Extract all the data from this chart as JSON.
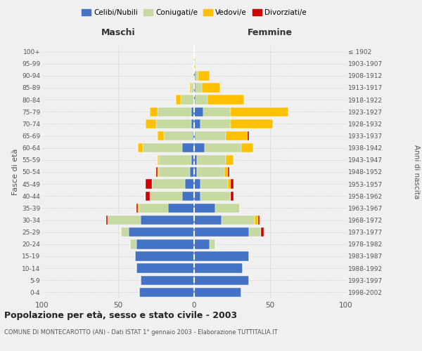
{
  "age_groups": [
    "0-4",
    "5-9",
    "10-14",
    "15-19",
    "20-24",
    "25-29",
    "30-34",
    "35-39",
    "40-44",
    "45-49",
    "50-54",
    "55-59",
    "60-64",
    "65-69",
    "70-74",
    "75-79",
    "80-84",
    "85-89",
    "90-94",
    "95-99",
    "100+"
  ],
  "birth_years": [
    "1998-2002",
    "1993-1997",
    "1988-1992",
    "1983-1987",
    "1978-1982",
    "1973-1977",
    "1968-1972",
    "1963-1967",
    "1958-1962",
    "1953-1957",
    "1948-1952",
    "1943-1947",
    "1938-1942",
    "1933-1937",
    "1928-1932",
    "1923-1927",
    "1918-1922",
    "1913-1917",
    "1908-1912",
    "1903-1907",
    "≤ 1902"
  ],
  "maschi": {
    "celibi": [
      36,
      35,
      38,
      39,
      38,
      43,
      35,
      17,
      8,
      6,
      3,
      2,
      8,
      1,
      2,
      2,
      0,
      0,
      0,
      0,
      0
    ],
    "coniugati": [
      0,
      0,
      0,
      0,
      4,
      5,
      22,
      19,
      21,
      22,
      20,
      21,
      26,
      19,
      23,
      22,
      9,
      2,
      1,
      0,
      0
    ],
    "vedovi": [
      0,
      0,
      0,
      0,
      0,
      0,
      0,
      1,
      0,
      0,
      1,
      1,
      3,
      4,
      7,
      5,
      3,
      1,
      0,
      0,
      0
    ],
    "divorziati": [
      0,
      0,
      0,
      0,
      0,
      0,
      1,
      1,
      3,
      4,
      1,
      0,
      0,
      0,
      0,
      0,
      0,
      0,
      0,
      0,
      0
    ]
  },
  "femmine": {
    "nubili": [
      31,
      36,
      32,
      36,
      10,
      36,
      18,
      14,
      4,
      4,
      2,
      2,
      7,
      1,
      4,
      6,
      1,
      1,
      1,
      0,
      0
    ],
    "coniugate": [
      0,
      0,
      0,
      0,
      4,
      8,
      22,
      16,
      20,
      18,
      18,
      19,
      24,
      20,
      20,
      18,
      8,
      4,
      2,
      0,
      0
    ],
    "vedove": [
      0,
      0,
      0,
      0,
      0,
      0,
      2,
      0,
      0,
      2,
      2,
      5,
      8,
      14,
      28,
      38,
      24,
      12,
      7,
      1,
      0
    ],
    "divorziate": [
      0,
      0,
      0,
      0,
      0,
      2,
      1,
      0,
      2,
      2,
      1,
      0,
      0,
      1,
      0,
      0,
      0,
      0,
      0,
      0,
      0
    ]
  },
  "colors": {
    "celibi": "#4472c4",
    "coniugati": "#c5d9a0",
    "vedovi": "#ffc000",
    "divorziati": "#cc0000"
  },
  "xlim": 100,
  "title": "Popolazione per età, sesso e stato civile - 2003",
  "subtitle": "COMUNE DI MONTECAROTTO (AN) - Dati ISTAT 1° gennaio 2003 - Elaborazione TUTTITALIA.IT",
  "ylabel_left": "Fasce di età",
  "ylabel_right": "Anni di nascita",
  "xlabel_left": "Maschi",
  "xlabel_right": "Femmine",
  "legend_labels": [
    "Celibi/Nubili",
    "Coniugati/e",
    "Vedovi/e",
    "Divorziati/e"
  ],
  "bg_color": "#f0f0f0"
}
